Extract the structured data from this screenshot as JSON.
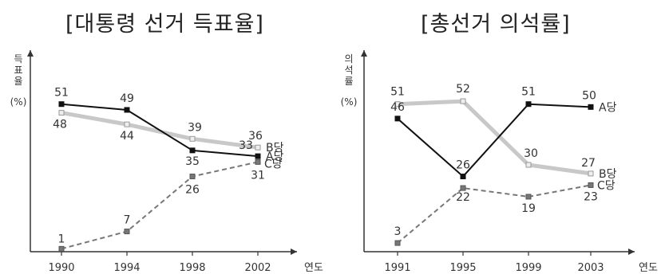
{
  "chart_data": [
    {
      "type": "line",
      "title": "[대통령 선거 득표율]",
      "ylabel_chars": [
        "득",
        "표",
        "율"
      ],
      "yunit": "(%)",
      "xlabel": "연도",
      "x": [
        "1990",
        "1994",
        "1998",
        "2002"
      ],
      "ylim": [
        0,
        60
      ],
      "grid": false,
      "series": [
        {
          "name": "A당",
          "values": [
            51,
            49,
            35,
            33
          ],
          "color": "#111111",
          "style": "solid-dark"
        },
        {
          "name": "B당",
          "values": [
            48,
            44,
            39,
            36
          ],
          "color": "#c8c8c8",
          "style": "solid-light"
        },
        {
          "name": "C당",
          "values": [
            1,
            7,
            26,
            31
          ],
          "color": "#777777",
          "style": "dashed"
        }
      ]
    },
    {
      "type": "line",
      "title": "[총선거 의석률]",
      "ylabel_chars": [
        "의",
        "석",
        "률"
      ],
      "yunit": "(%)",
      "xlabel": "연도",
      "x": [
        "1991",
        "1995",
        "1999",
        "2003"
      ],
      "ylim": [
        0,
        60
      ],
      "grid": false,
      "series": [
        {
          "name": "A당",
          "values": [
            46,
            26,
            51,
            50
          ],
          "color": "#111111",
          "style": "solid-dark"
        },
        {
          "name": "B당",
          "values": [
            51,
            52,
            30,
            27
          ],
          "color": "#c8c8c8",
          "style": "solid-light"
        },
        {
          "name": "C당",
          "values": [
            3,
            22,
            19,
            23
          ],
          "color": "#777777",
          "style": "dashed"
        }
      ]
    }
  ]
}
